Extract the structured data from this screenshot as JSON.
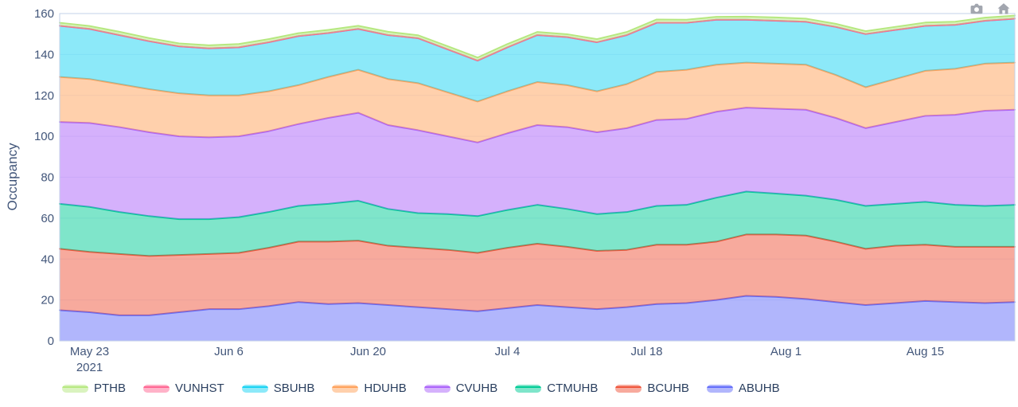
{
  "modebar": {
    "buttons": [
      {
        "name": "download-plot-button",
        "icon": "camera-icon"
      },
      {
        "name": "reset-axes-button",
        "icon": "home-icon"
      }
    ]
  },
  "style": {
    "grid_color": "#e9eff9",
    "axis_line_color": "#c3d1e8",
    "tick_color": "#42567a",
    "legend_text_color": "#2a3f5f",
    "modebar_icon_color": "#a2a6af",
    "background": "#ffffff"
  },
  "chart_data": {
    "type": "area",
    "stacked": true,
    "title": "",
    "xlabel": "",
    "ylabel": "Occupancy",
    "ylim": [
      0,
      160
    ],
    "yticks": [
      0,
      20,
      40,
      60,
      80,
      100,
      120,
      140,
      160
    ],
    "grid": true,
    "legend_position": "bottom-left",
    "fill_opacity": 0.5,
    "x_days": [
      0,
      3,
      6,
      9,
      12,
      15,
      18,
      21,
      24,
      27,
      30,
      33,
      36,
      39,
      42,
      45,
      48,
      51,
      54,
      57,
      60,
      63,
      66,
      69,
      72,
      75,
      78,
      81,
      84,
      87,
      90,
      93,
      96
    ],
    "xticks": [
      {
        "day": 3,
        "label": "May 23",
        "sub": "2021"
      },
      {
        "day": 17,
        "label": "Jun 6"
      },
      {
        "day": 31,
        "label": "Jun 20"
      },
      {
        "day": 45,
        "label": "Jul 4"
      },
      {
        "day": 59,
        "label": "Jul 18"
      },
      {
        "day": 73,
        "label": "Aug 1"
      },
      {
        "day": 87,
        "label": "Aug 15"
      }
    ],
    "series": [
      {
        "name": "ABUHB",
        "color": "#636EFA",
        "values": [
          15,
          14,
          12.5,
          12.5,
          14,
          15.5,
          15.5,
          17,
          19,
          18,
          18.5,
          17.5,
          16.5,
          15.5,
          14.5,
          16,
          17.5,
          16.5,
          15.5,
          16.5,
          18,
          18.5,
          20,
          22,
          21.5,
          20.5,
          19,
          17.5,
          18.5,
          19.5,
          19,
          18.5,
          19
        ]
      },
      {
        "name": "BCUHB",
        "color": "#EF553B",
        "values": [
          30,
          29.5,
          30,
          29,
          28,
          27,
          27.5,
          28.5,
          29.5,
          30.5,
          30.5,
          29,
          29,
          29,
          28.5,
          29.5,
          30,
          29.5,
          28.5,
          28,
          29,
          28.5,
          28.5,
          30,
          30.5,
          31,
          29.5,
          27.5,
          28,
          27.5,
          27,
          27.5,
          27
        ]
      },
      {
        "name": "CTMUHB",
        "color": "#00CC96",
        "values": [
          22,
          22,
          20.5,
          19.5,
          17.5,
          17,
          17.5,
          17.5,
          17.5,
          18.5,
          19.5,
          18,
          17,
          17.5,
          18,
          18.5,
          19,
          18.5,
          18,
          18.5,
          19,
          19.5,
          21.5,
          21,
          20,
          19.5,
          20.5,
          21,
          20.5,
          21,
          20.5,
          20,
          20.5
        ]
      },
      {
        "name": "CVUHB",
        "color": "#AB63FA",
        "values": [
          40,
          41,
          41.5,
          41,
          40.5,
          40,
          39.5,
          39.5,
          40,
          42,
          43,
          41,
          40.5,
          38,
          36,
          37.5,
          39,
          40,
          40,
          41,
          42,
          42,
          42,
          41,
          41.5,
          42,
          40,
          38,
          40,
          42,
          44,
          46.5,
          46.5
        ]
      },
      {
        "name": "HDUHB",
        "color": "#FFA15A",
        "values": [
          22,
          21.5,
          21,
          21,
          21,
          20.5,
          20,
          19.5,
          19,
          20,
          21,
          22.5,
          23,
          21.5,
          20,
          20.5,
          21,
          20.5,
          20,
          21.5,
          23.5,
          24,
          23,
          22,
          22,
          22,
          21,
          20,
          21,
          22,
          22.5,
          23,
          23
        ]
      },
      {
        "name": "SBUHB",
        "color": "#19D3F3",
        "values": [
          25,
          24.5,
          24,
          23.5,
          23,
          23,
          23.5,
          24,
          24,
          21.5,
          20,
          21.5,
          22,
          21,
          20,
          21.5,
          23,
          23.5,
          24,
          24,
          24,
          23,
          22,
          21,
          21,
          21,
          23.5,
          26,
          24,
          22,
          21.5,
          21,
          21.5
        ]
      },
      {
        "name": "VUNHST",
        "color": "#FF6692",
        "values": [
          0,
          0,
          0,
          0,
          0,
          0,
          0,
          0,
          0,
          0,
          0,
          0,
          0,
          0,
          0,
          0,
          0,
          0,
          0,
          0,
          0,
          0,
          0,
          0,
          0,
          0,
          0,
          0,
          0,
          0,
          0,
          0,
          0
        ]
      },
      {
        "name": "PTHB",
        "color": "#B6E880",
        "values": [
          1.5,
          1.4,
          1.6,
          1.5,
          1.4,
          1.5,
          1.6,
          1.5,
          1.4,
          1.5,
          1.5,
          1.6,
          1.4,
          1.5,
          1.5,
          1.6,
          1.5,
          1.4,
          1.5,
          1.5,
          1.6,
          1.5,
          1.4,
          1.5,
          1.6,
          1.5,
          1.5,
          1.4,
          1.5,
          1.6,
          1.5,
          1.5,
          1.5
        ]
      }
    ],
    "legend_order": [
      "PTHB",
      "VUNHST",
      "SBUHB",
      "HDUHB",
      "CVUHB",
      "CTMUHB",
      "BCUHB",
      "ABUHB"
    ]
  }
}
